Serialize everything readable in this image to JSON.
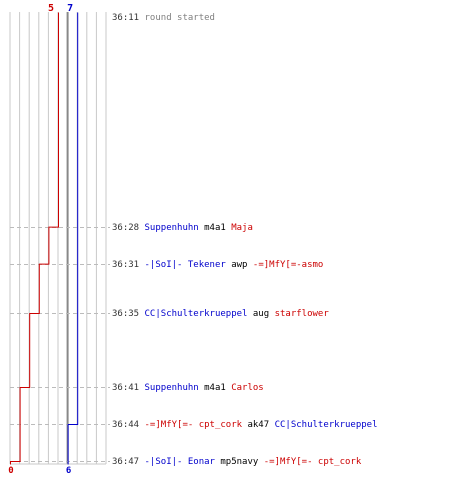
{
  "chart_data": {
    "type": "line",
    "title": "",
    "xlabel": "",
    "ylabel": "",
    "ylim_time": [
      "36:11",
      "36:47"
    ],
    "alive_scale": [
      0,
      10
    ],
    "series": [
      {
        "color": "#0000cc",
        "start_label": "7",
        "end_label": "6",
        "points": [
          {
            "time": "36:11",
            "alive": 7
          },
          {
            "time": "36:28",
            "alive": 7
          },
          {
            "time": "36:31",
            "alive": 7
          },
          {
            "time": "36:35",
            "alive": 7
          },
          {
            "time": "36:41",
            "alive": 7
          },
          {
            "time": "36:44",
            "alive": 6
          },
          {
            "time": "36:47",
            "alive": 6
          }
        ]
      },
      {
        "color": "#cc0000",
        "start_label": "5",
        "end_label": "0",
        "points": [
          {
            "time": "36:11",
            "alive": 5
          },
          {
            "time": "36:28",
            "alive": 4
          },
          {
            "time": "36:31",
            "alive": 3
          },
          {
            "time": "36:35",
            "alive": 2
          },
          {
            "time": "36:41",
            "alive": 1
          },
          {
            "time": "36:44",
            "alive": 1
          },
          {
            "time": "36:47",
            "alive": 0
          }
        ]
      }
    ],
    "events": [
      {
        "time": "36:11",
        "parts": [
          {
            "text": "round started",
            "color": "#808080"
          }
        ]
      },
      {
        "time": "36:28",
        "parts": [
          {
            "text": "Suppenhuhn",
            "color": "#0000cc"
          },
          {
            "text": "m4a1",
            "color": "#000000"
          },
          {
            "text": "Maja",
            "color": "#cc0000"
          }
        ]
      },
      {
        "time": "36:31",
        "parts": [
          {
            "text": "-|SoI|- Tekener",
            "color": "#0000cc"
          },
          {
            "text": "awp",
            "color": "#000000"
          },
          {
            "text": "-=]MfY[=-asmo",
            "color": "#cc0000"
          }
        ]
      },
      {
        "time": "36:35",
        "parts": [
          {
            "text": "CC|Schulterkrueppel",
            "color": "#0000cc"
          },
          {
            "text": "aug",
            "color": "#000000"
          },
          {
            "text": "starflower",
            "color": "#cc0000"
          }
        ]
      },
      {
        "time": "36:41",
        "parts": [
          {
            "text": "Suppenhuhn",
            "color": "#0000cc"
          },
          {
            "text": "m4a1",
            "color": "#000000"
          },
          {
            "text": "Carlos",
            "color": "#cc0000"
          }
        ]
      },
      {
        "time": "36:44",
        "parts": [
          {
            "text": "-=]MfY[=- cpt_cork",
            "color": "#cc0000"
          },
          {
            "text": "ak47",
            "color": "#000000"
          },
          {
            "text": "CC|Schulterkrueppel",
            "color": "#0000cc"
          }
        ]
      },
      {
        "time": "36:47",
        "parts": [
          {
            "text": "-|SoI|- Eonar",
            "color": "#0000cc"
          },
          {
            "text": "mp5navy",
            "color": "#000000"
          },
          {
            "text": "-=]MfY[=- cpt_cork",
            "color": "#cc0000"
          }
        ]
      }
    ]
  }
}
